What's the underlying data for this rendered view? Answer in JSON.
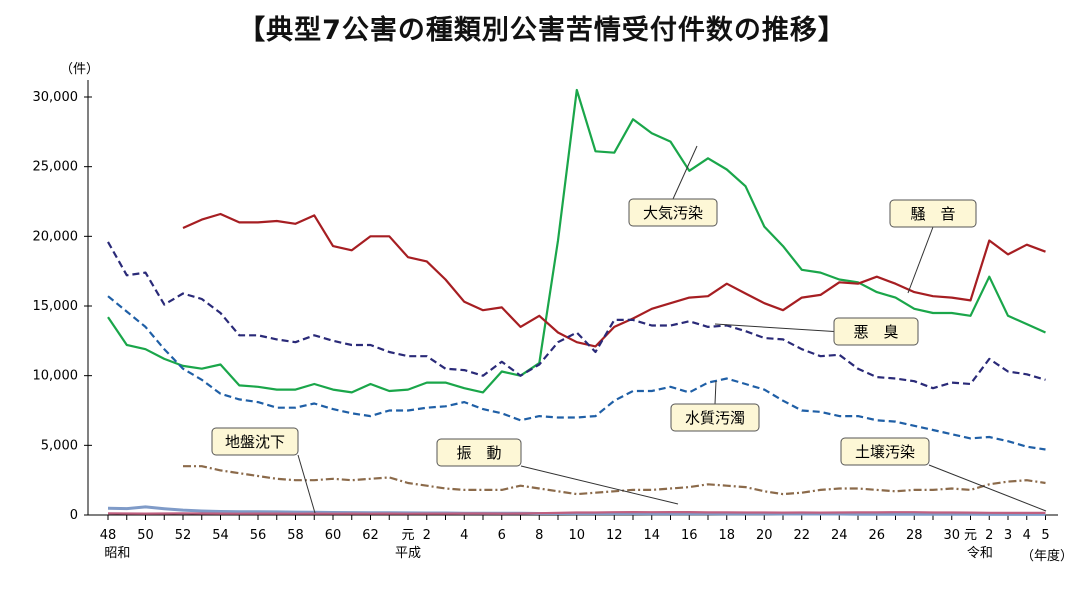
{
  "chart_data": {
    "type": "line",
    "title": "【典型7公害の種類別公害苦情受付件数の推移】",
    "ylabel": "（件）",
    "xlabel": "（年度）",
    "ylim": [
      0,
      30000
    ],
    "yticks": [
      0,
      5000,
      10000,
      15000,
      20000,
      25000,
      30000
    ],
    "ytick_labels": [
      "0",
      "5,000",
      "10,000",
      "15,000",
      "20,000",
      "25,000",
      "30,000"
    ],
    "x": [
      "昭和48",
      "49",
      "50",
      "51",
      "52",
      "53",
      "54",
      "55",
      "56",
      "57",
      "58",
      "59",
      "60",
      "61",
      "62",
      "63",
      "平成元",
      "2",
      "3",
      "4",
      "5",
      "6",
      "7",
      "8",
      "9",
      "10",
      "11",
      "12",
      "13",
      "14",
      "15",
      "16",
      "17",
      "18",
      "19",
      "20",
      "21",
      "22",
      "23",
      "24",
      "25",
      "26",
      "27",
      "28",
      "29",
      "30",
      "令和元",
      "2",
      "3",
      "4",
      "5"
    ],
    "xtick_labels": [
      "48",
      "50",
      "52",
      "54",
      "56",
      "58",
      "60",
      "62",
      "元",
      "2",
      "4",
      "6",
      "8",
      "10",
      "12",
      "14",
      "16",
      "18",
      "20",
      "22",
      "24",
      "26",
      "28",
      "30",
      "元",
      "2",
      "3",
      "4",
      "5"
    ],
    "era_labels": [
      "昭和",
      "平成",
      "令和"
    ],
    "grid": false,
    "series": [
      {
        "name": "大気汚染",
        "color": "#1aa64a",
        "style": "solid",
        "values": [
          14200,
          12200,
          11900,
          11200,
          10700,
          10500,
          10800,
          9300,
          9200,
          9000,
          9000,
          9400,
          9000,
          8800,
          9400,
          8900,
          9000,
          9500,
          9500,
          9100,
          8800,
          10300,
          10000,
          10900,
          19700,
          30500,
          26100,
          26000,
          28400,
          27400,
          26800,
          24700,
          25600,
          24800,
          23600,
          20700,
          19300,
          17600,
          17400,
          16900,
          16700,
          16000,
          15600,
          14800,
          14500,
          14500,
          14300,
          17100,
          14300,
          13700,
          13100
        ]
      },
      {
        "name": "騒　音",
        "color": "#a61e22",
        "style": "solid",
        "values": [
          null,
          null,
          null,
          null,
          20600,
          21200,
          21600,
          21000,
          21000,
          21100,
          20900,
          21500,
          19300,
          19000,
          20000,
          20000,
          18500,
          18200,
          16900,
          15300,
          14700,
          14900,
          13500,
          14300,
          13100,
          12400,
          12100,
          13500,
          14100,
          14800,
          15200,
          15600,
          15700,
          16600,
          15900,
          15200,
          14700,
          15600,
          15800,
          16700,
          16600,
          17100,
          16600,
          16000,
          15700,
          15600,
          15400,
          19700,
          18700,
          19400,
          18900
        ]
      },
      {
        "name": "悪　臭",
        "color": "#2a2a78",
        "style": "dashed",
        "values": [
          19600,
          17200,
          17400,
          15100,
          15900,
          15500,
          14500,
          12900,
          12900,
          12600,
          12400,
          12900,
          12500,
          12200,
          12200,
          11700,
          11400,
          11400,
          10500,
          10400,
          10000,
          11000,
          10000,
          10800,
          12400,
          13100,
          11700,
          14000,
          14000,
          13600,
          13600,
          13900,
          13500,
          13600,
          13200,
          12700,
          12600,
          11900,
          11400,
          11500,
          10500,
          9900,
          9800,
          9600,
          9100,
          9500,
          9400,
          11200,
          10300,
          10100,
          9700
        ]
      },
      {
        "name": "水質汚濁",
        "color": "#1f5fa6",
        "style": "dashed",
        "values": [
          15700,
          14600,
          13500,
          11900,
          10500,
          9700,
          8700,
          8300,
          8100,
          7700,
          7700,
          8000,
          7600,
          7300,
          7100,
          7500,
          7500,
          7700,
          7800,
          8100,
          7600,
          7300,
          6800,
          7100,
          7000,
          7000,
          7100,
          8200,
          8900,
          8900,
          9200,
          8800,
          9500,
          9800,
          9400,
          9000,
          8200,
          7500,
          7400,
          7100,
          7100,
          6800,
          6700,
          6400,
          6100,
          5800,
          5500,
          5600,
          5300,
          4900,
          4700
        ]
      },
      {
        "name": "振　動",
        "color": "#8b6a4a",
        "style": "dashdot",
        "values": [
          null,
          null,
          null,
          null,
          3500,
          3500,
          3200,
          3000,
          2800,
          2600,
          2500,
          2500,
          2600,
          2500,
          2600,
          2700,
          2300,
          2100,
          1900,
          1800,
          1800,
          1800,
          2100,
          1900,
          1700,
          1500,
          1600,
          1700,
          1800,
          1800,
          1900,
          2000,
          2200,
          2100,
          2000,
          1700,
          1500,
          1600,
          1800,
          1900,
          1900,
          1800,
          1700,
          1800,
          1800,
          1900,
          1800,
          2200,
          2400,
          2500,
          2300
        ]
      },
      {
        "name": "地盤沈下",
        "color": "#7f9bc8",
        "style": "solid",
        "values": [
          480,
          460,
          580,
          450,
          350,
          290,
          250,
          240,
          230,
          220,
          210,
          200,
          180,
          170,
          160,
          160,
          150,
          140,
          140,
          130,
          130,
          120,
          120,
          110,
          110,
          100,
          100,
          100,
          100,
          90,
          90,
          90,
          90,
          80,
          80,
          80,
          70,
          70,
          70,
          70,
          60,
          60,
          60,
          60,
          50,
          50,
          50,
          40,
          40,
          40,
          40
        ]
      },
      {
        "name": "土壌汚染",
        "color": "#c06080",
        "style": "solid",
        "values": [
          120,
          110,
          100,
          110,
          120,
          110,
          100,
          90,
          100,
          100,
          90,
          100,
          90,
          100,
          90,
          100,
          90,
          100,
          100,
          110,
          110,
          100,
          110,
          130,
          150,
          180,
          180,
          200,
          210,
          200,
          210,
          210,
          190,
          190,
          180,
          180,
          170,
          180,
          170,
          180,
          190,
          190,
          200,
          200,
          180,
          180,
          170,
          160,
          150,
          150,
          150
        ]
      }
    ],
    "annotations": [
      {
        "text": "大気汚染",
        "series": "大気汚染"
      },
      {
        "text": "騒　音",
        "series": "騒　音"
      },
      {
        "text": "悪　臭",
        "series": "悪　臭"
      },
      {
        "text": "水質汚濁",
        "series": "水質汚濁"
      },
      {
        "text": "振　動",
        "series": "振　動"
      },
      {
        "text": "地盤沈下",
        "series": "地盤沈下"
      },
      {
        "text": "土壌汚染",
        "series": "土壌汚染"
      }
    ]
  }
}
